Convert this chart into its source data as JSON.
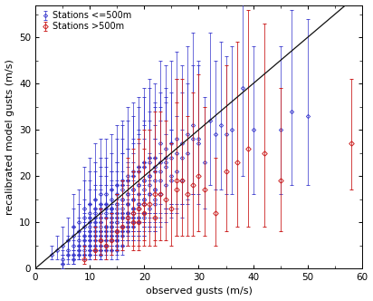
{
  "xlabel": "observed gusts (m/s)",
  "ylabel": "recalibrated model gusts (m/s)",
  "xlim": [
    0,
    60
  ],
  "ylim": [
    0,
    57
  ],
  "xticks": [
    0,
    10,
    20,
    30,
    40,
    50,
    60
  ],
  "yticks": [
    0,
    10,
    20,
    30,
    40,
    50
  ],
  "legend1": "Stations <=500m",
  "legend2": "Stations >500m",
  "blue_color": "#3333cc",
  "red_color": "#cc2222",
  "line_color": "#111111",
  "fig_facecolor": "#ffffff",
  "ax_facecolor": "#ffffff",
  "blue_x": [
    3,
    4,
    5,
    5,
    5,
    6,
    6,
    6,
    7,
    7,
    7,
    7,
    7,
    8,
    8,
    8,
    8,
    8,
    8,
    9,
    9,
    9,
    9,
    9,
    9,
    9,
    9,
    10,
    10,
    10,
    10,
    10,
    10,
    10,
    10,
    10,
    10,
    10,
    11,
    11,
    11,
    11,
    11,
    11,
    11,
    11,
    11,
    11,
    11,
    12,
    12,
    12,
    12,
    12,
    12,
    12,
    12,
    12,
    12,
    12,
    12,
    12,
    13,
    13,
    13,
    13,
    13,
    13,
    13,
    13,
    13,
    13,
    13,
    13,
    14,
    14,
    14,
    14,
    14,
    14,
    14,
    14,
    14,
    14,
    14,
    14,
    14,
    15,
    15,
    15,
    15,
    15,
    15,
    15,
    15,
    15,
    15,
    15,
    15,
    15,
    15,
    15,
    16,
    16,
    16,
    16,
    16,
    16,
    16,
    16,
    16,
    16,
    16,
    16,
    16,
    17,
    17,
    17,
    17,
    17,
    17,
    17,
    17,
    17,
    17,
    17,
    17,
    18,
    18,
    18,
    18,
    18,
    18,
    18,
    18,
    18,
    18,
    18,
    18,
    19,
    19,
    19,
    19,
    19,
    19,
    19,
    19,
    19,
    19,
    20,
    20,
    20,
    20,
    20,
    20,
    20,
    20,
    20,
    20,
    21,
    21,
    21,
    21,
    21,
    21,
    21,
    21,
    22,
    22,
    22,
    22,
    22,
    22,
    22,
    22,
    23,
    23,
    23,
    23,
    23,
    24,
    24,
    24,
    24,
    24,
    25,
    25,
    25,
    25,
    26,
    26,
    26,
    27,
    27,
    27,
    28,
    28,
    29,
    29,
    30,
    30,
    31,
    32,
    33,
    34,
    35,
    36,
    38,
    40,
    45,
    47,
    50
  ],
  "blue_y": [
    3,
    4,
    5,
    2,
    1,
    4,
    6,
    3,
    5,
    7,
    3,
    9,
    2,
    6,
    8,
    4,
    10,
    3,
    5,
    7,
    9,
    5,
    11,
    3,
    6,
    13,
    4,
    8,
    10,
    6,
    12,
    4,
    14,
    11,
    7,
    3,
    5,
    9,
    9,
    11,
    7,
    13,
    5,
    15,
    12,
    8,
    4,
    6,
    10,
    10,
    12,
    8,
    14,
    5,
    16,
    13,
    9,
    4,
    6,
    11,
    7,
    3,
    9,
    11,
    7,
    14,
    5,
    16,
    13,
    9,
    4,
    12,
    6,
    8,
    10,
    12,
    8,
    15,
    6,
    17,
    13,
    9,
    4,
    7,
    11,
    13,
    9,
    16,
    7,
    18,
    14,
    10,
    5,
    6,
    12,
    8,
    4,
    14,
    10,
    6,
    11,
    13,
    15,
    11,
    18,
    8,
    19,
    15,
    11,
    7,
    5,
    13,
    9,
    17,
    12,
    14,
    16,
    12,
    19,
    9,
    20,
    16,
    12,
    8,
    10,
    14,
    11,
    15,
    17,
    13,
    20,
    10,
    21,
    17,
    13,
    9,
    11,
    15,
    12,
    16,
    18,
    14,
    21,
    11,
    22,
    18,
    14,
    10,
    13,
    17,
    19,
    15,
    22,
    12,
    23,
    19,
    15,
    11,
    14,
    18,
    20,
    16,
    23,
    13,
    24,
    20,
    16,
    22,
    17,
    24,
    14,
    19,
    21,
    15,
    17,
    23,
    19,
    16,
    27,
    21,
    24,
    18,
    22,
    26,
    23,
    19,
    27,
    24,
    20,
    28,
    25,
    21,
    27,
    24,
    19,
    25,
    29,
    28,
    31,
    28,
    27,
    23,
    32,
    29,
    31,
    29,
    30,
    39,
    30,
    30,
    34,
    33
  ],
  "blue_yerr_lo": [
    1,
    2,
    2,
    1,
    1,
    2,
    3,
    2,
    3,
    4,
    2,
    5,
    1,
    3,
    4,
    2,
    5,
    1,
    2,
    4,
    4,
    2,
    6,
    1,
    3,
    7,
    2,
    4,
    5,
    3,
    6,
    2,
    7,
    5,
    3,
    1,
    2,
    4,
    4,
    5,
    3,
    7,
    2,
    8,
    6,
    4,
    2,
    3,
    5,
    5,
    6,
    4,
    7,
    2,
    8,
    6,
    4,
    2,
    3,
    5,
    3,
    1,
    4,
    5,
    3,
    7,
    2,
    8,
    6,
    4,
    2,
    6,
    2,
    4,
    5,
    5,
    4,
    7,
    3,
    8,
    6,
    4,
    2,
    3,
    5,
    6,
    4,
    8,
    3,
    9,
    6,
    4,
    2,
    2,
    5,
    3,
    2,
    6,
    4,
    2,
    5,
    6,
    7,
    5,
    9,
    3,
    9,
    7,
    5,
    3,
    2,
    6,
    4,
    8,
    5,
    6,
    7,
    5,
    9,
    4,
    10,
    7,
    5,
    3,
    4,
    6,
    5,
    7,
    8,
    5,
    9,
    4,
    10,
    7,
    5,
    3,
    4,
    6,
    5,
    8,
    8,
    6,
    10,
    4,
    10,
    8,
    6,
    4,
    6,
    8,
    9,
    6,
    10,
    5,
    11,
    9,
    6,
    4,
    6,
    9,
    10,
    7,
    11,
    5,
    12,
    9,
    7,
    10,
    8,
    12,
    6,
    9,
    10,
    7,
    8,
    11,
    9,
    7,
    13,
    10,
    11,
    8,
    10,
    13,
    10,
    8,
    13,
    10,
    8,
    14,
    12,
    9,
    13,
    10,
    8,
    11,
    14,
    12,
    15,
    12,
    13,
    10,
    14,
    12,
    14,
    13,
    14,
    19,
    14,
    14,
    16,
    15
  ],
  "blue_yerr_hi": [
    2,
    3,
    4,
    2,
    2,
    3,
    5,
    3,
    4,
    6,
    3,
    7,
    2,
    5,
    6,
    3,
    7,
    2,
    3,
    5,
    6,
    3,
    8,
    2,
    4,
    9,
    3,
    6,
    7,
    4,
    9,
    3,
    10,
    8,
    4,
    2,
    3,
    5,
    6,
    7,
    4,
    10,
    3,
    12,
    9,
    5,
    3,
    4,
    7,
    7,
    8,
    5,
    10,
    3,
    12,
    9,
    5,
    3,
    4,
    7,
    4,
    2,
    5,
    7,
    4,
    10,
    3,
    12,
    9,
    5,
    3,
    8,
    3,
    5,
    7,
    7,
    5,
    10,
    4,
    12,
    8,
    5,
    3,
    4,
    7,
    8,
    5,
    12,
    4,
    13,
    9,
    5,
    3,
    3,
    7,
    4,
    3,
    9,
    5,
    3,
    7,
    8,
    10,
    7,
    13,
    4,
    13,
    10,
    7,
    4,
    3,
    8,
    5,
    11,
    7,
    9,
    10,
    7,
    13,
    5,
    15,
    10,
    7,
    4,
    5,
    8,
    7,
    10,
    11,
    7,
    13,
    5,
    15,
    10,
    7,
    4,
    5,
    8,
    7,
    11,
    12,
    8,
    14,
    5,
    15,
    11,
    8,
    5,
    8,
    11,
    13,
    8,
    15,
    6,
    16,
    12,
    8,
    5,
    8,
    12,
    14,
    9,
    16,
    6,
    17,
    12,
    8,
    14,
    11,
    16,
    7,
    12,
    14,
    9,
    11,
    15,
    13,
    9,
    18,
    14,
    15,
    11,
    14,
    18,
    14,
    11,
    18,
    14,
    10,
    19,
    16,
    12,
    17,
    14,
    11,
    15,
    19,
    16,
    20,
    16,
    18,
    14,
    19,
    16,
    18,
    17,
    18,
    26,
    18,
    18,
    22,
    21
  ],
  "red_x": [
    9,
    11,
    12,
    13,
    14,
    15,
    16,
    17,
    18,
    18,
    19,
    19,
    20,
    20,
    21,
    22,
    22,
    23,
    24,
    25,
    26,
    26,
    27,
    28,
    29,
    30,
    31,
    33,
    35,
    37,
    39,
    42,
    45,
    58
  ],
  "red_y": [
    2,
    4,
    6,
    5,
    6,
    8,
    9,
    11,
    12,
    10,
    10,
    13,
    12,
    14,
    14,
    11,
    16,
    16,
    15,
    13,
    17,
    19,
    19,
    16,
    18,
    20,
    17,
    12,
    21,
    23,
    26,
    25,
    19,
    27
  ],
  "red_yerr_lo": [
    1,
    2,
    3,
    3,
    3,
    4,
    5,
    6,
    7,
    6,
    6,
    8,
    7,
    8,
    9,
    6,
    10,
    10,
    9,
    8,
    10,
    12,
    12,
    9,
    11,
    12,
    10,
    7,
    13,
    14,
    17,
    16,
    11,
    10
  ],
  "red_yerr_hi": [
    3,
    5,
    7,
    6,
    6,
    8,
    10,
    13,
    14,
    11,
    11,
    15,
    14,
    16,
    16,
    10,
    18,
    18,
    17,
    14,
    19,
    22,
    22,
    17,
    20,
    22,
    18,
    12,
    23,
    26,
    30,
    28,
    20,
    14
  ]
}
